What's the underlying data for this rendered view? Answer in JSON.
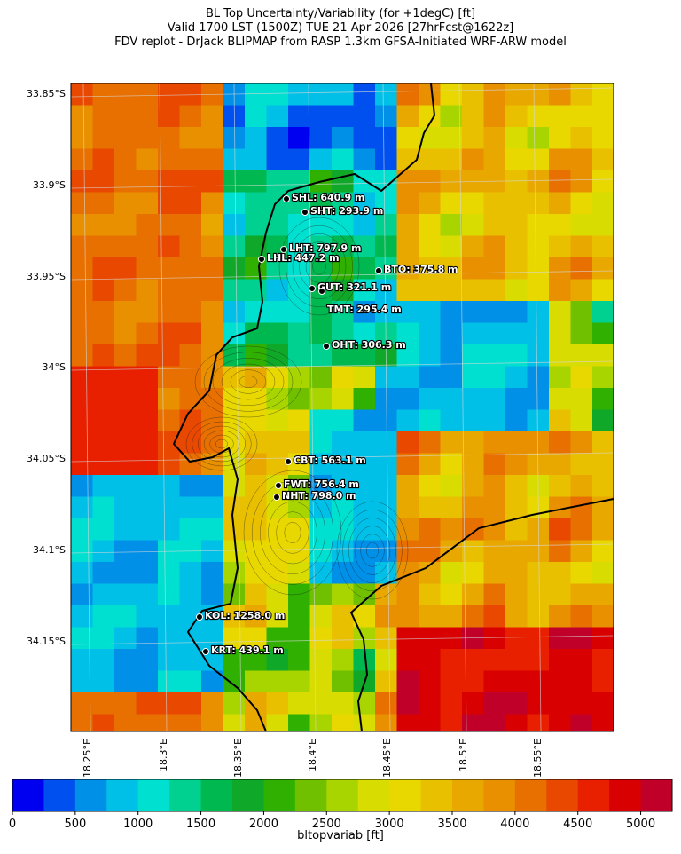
{
  "title": {
    "line1": "BL Top Uncertainty/Variability (for +1degC) [ft]",
    "line2": "Valid 1700 LST (1500Z) TUE 21 Apr 2026 [27hrFcst@1622z]",
    "line3": "FDV replot - DrJack BLIPMAP from RASP 1.3km GFSA-Initiated WRF-ARW model"
  },
  "axes": {
    "lat_labels": [
      "33.85°S",
      "33.9°S",
      "33.95°S",
      "34°S",
      "34.05°S",
      "34.1°S",
      "34.15°S"
    ],
    "lon_labels": [
      "18.25°E",
      "18.3°E",
      "18.35°E",
      "18.4°E",
      "18.45°E",
      "18.5°E",
      "18.55°E"
    ]
  },
  "stations": [
    {
      "code": "SHL",
      "label": "SHL: 640.9 m"
    },
    {
      "code": "SHT",
      "label": "SHT: 293.9 m"
    },
    {
      "code": "LHT",
      "label": "LHT: 797.9 m"
    },
    {
      "code": "LHL",
      "label": "LHL: 447.2 m"
    },
    {
      "code": "BTO",
      "label": "BTO: 375.8 m"
    },
    {
      "code": "GUT",
      "label": "GUT: 321.1 m"
    },
    {
      "code": "TMT",
      "label": "TMT: 295.4 m"
    },
    {
      "code": "OHT",
      "label": "OHT: 306.3 m"
    },
    {
      "code": "CBT",
      "label": "CBT: 563.1 m"
    },
    {
      "code": "FWT",
      "label": "FWT: 756.4 m"
    },
    {
      "code": "NHT",
      "label": "NHT: 798.0 m"
    },
    {
      "code": "KOL",
      "label": "KOL: 1258.0 m"
    },
    {
      "code": "KRT",
      "label": "KRT: 439.1 m"
    }
  ],
  "colorbar": {
    "label": "bltopvariab [ft]",
    "ticks": [
      "0",
      "500",
      "1000",
      "1500",
      "2000",
      "2500",
      "3000",
      "3500",
      "4000",
      "4500",
      "5000"
    ],
    "colors": [
      "#0000f0",
      "#0050f0",
      "#0090e8",
      "#00c0e8",
      "#00e0d0",
      "#00d090",
      "#00b850",
      "#10a828",
      "#30b000",
      "#70c000",
      "#a8d400",
      "#d8dc00",
      "#e8d800",
      "#e8c000",
      "#e8a800",
      "#e89000",
      "#e87000",
      "#e84800",
      "#e82000",
      "#d80000",
      "#c00028"
    ]
  }
}
